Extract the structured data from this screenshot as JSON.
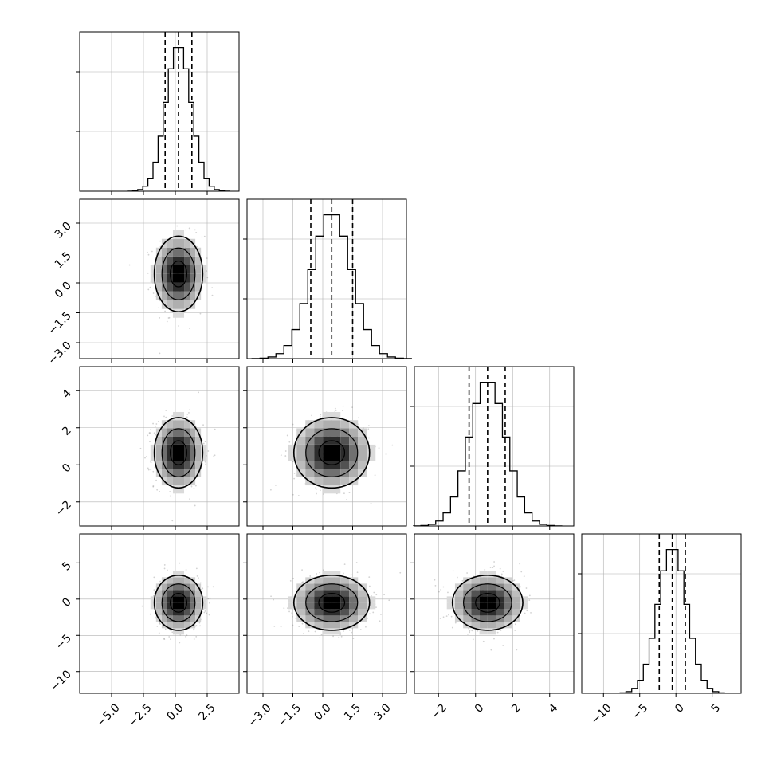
{
  "figure": {
    "type": "corner_plot",
    "grid": true,
    "parameter_count": 4,
    "colors": {
      "hist_line": "#000000",
      "quantile_line": "#000000",
      "scatter": "#7f7f7f",
      "grid": "#b0b0b0",
      "density_max": "#000000"
    }
  },
  "chart_data": [
    {
      "type": "histogram",
      "panel": "diag-0",
      "param": 0,
      "xlim": [
        -7.5,
        5.0
      ],
      "ylim": [
        0,
        1.0
      ],
      "mean": 0.25,
      "sd": 1.0,
      "bins": 20,
      "quantiles": [
        -0.8,
        0.25,
        1.3
      ],
      "grid": true
    },
    {
      "type": "histogram",
      "panel": "diag-1",
      "param": 1,
      "xlim": [
        -3.8,
        4.2
      ],
      "ylim": [
        0,
        1.0
      ],
      "mean": 0.45,
      "sd": 1.0,
      "bins": 20,
      "quantiles": [
        -0.6,
        0.45,
        1.5
      ],
      "grid": true
    },
    {
      "type": "histogram",
      "panel": "diag-2",
      "param": 2,
      "xlim": [
        -3.3,
        5.3
      ],
      "ylim": [
        0,
        1.0
      ],
      "mean": 0.65,
      "sd": 1.0,
      "bins": 20,
      "quantiles": [
        -0.35,
        0.65,
        1.6
      ],
      "grid": true
    },
    {
      "type": "histogram",
      "panel": "diag-3",
      "param": 3,
      "xlim": [
        -13.0,
        9.0
      ],
      "ylim": [
        0,
        1.0
      ],
      "mean": -0.5,
      "sd": 2.0,
      "bins": 20,
      "quantiles": [
        -2.3,
        -0.5,
        1.3
      ],
      "grid": true
    },
    {
      "type": "scatter",
      "panel": "2d-1-0",
      "x_param": 0,
      "y_param": 1,
      "xlim": [
        -7.5,
        5.0
      ],
      "ylim": [
        -3.8,
        4.2
      ],
      "center": [
        0.25,
        0.45
      ],
      "sd": [
        1.0,
        1.0
      ],
      "grid": true
    },
    {
      "type": "scatter",
      "panel": "2d-2-0",
      "x_param": 0,
      "y_param": 2,
      "xlim": [
        -7.5,
        5.0
      ],
      "ylim": [
        -3.3,
        5.3
      ],
      "center": [
        0.25,
        0.65
      ],
      "sd": [
        1.0,
        1.0
      ],
      "grid": true
    },
    {
      "type": "scatter",
      "panel": "2d-2-1",
      "x_param": 1,
      "y_param": 2,
      "xlim": [
        -3.8,
        4.2
      ],
      "ylim": [
        -3.3,
        5.3
      ],
      "center": [
        0.45,
        0.65
      ],
      "sd": [
        1.0,
        1.0
      ],
      "grid": true
    },
    {
      "type": "scatter",
      "panel": "2d-3-0",
      "x_param": 0,
      "y_param": 3,
      "xlim": [
        -7.5,
        5.0
      ],
      "ylim": [
        -13.0,
        9.0
      ],
      "center": [
        0.25,
        -0.5
      ],
      "sd": [
        1.0,
        2.0
      ],
      "grid": true
    },
    {
      "type": "scatter",
      "panel": "2d-3-1",
      "x_param": 1,
      "y_param": 3,
      "xlim": [
        -3.8,
        4.2
      ],
      "ylim": [
        -13.0,
        9.0
      ],
      "center": [
        0.45,
        -0.5
      ],
      "sd": [
        1.0,
        2.0
      ],
      "grid": true
    },
    {
      "type": "scatter",
      "panel": "2d-3-2",
      "x_param": 2,
      "y_param": 3,
      "xlim": [
        -3.3,
        5.3
      ],
      "ylim": [
        -13.0,
        9.0
      ],
      "center": [
        0.65,
        -0.5
      ],
      "sd": [
        1.0,
        2.0
      ],
      "grid": true
    }
  ],
  "axes": {
    "x_ticks": [
      {
        "values": [
          -5.0,
          -2.5,
          0.0,
          2.5
        ],
        "labels": [
          "−5.0",
          "−2.5",
          "0.0",
          "2.5"
        ]
      },
      {
        "values": [
          -3.0,
          -1.5,
          0.0,
          1.5,
          3.0
        ],
        "labels": [
          "−3.0",
          "−1.5",
          "0.0",
          "1.5",
          "3.0"
        ]
      },
      {
        "values": [
          -2,
          0,
          2,
          4
        ],
        "labels": [
          "−2",
          "0",
          "2",
          "4"
        ]
      },
      {
        "values": [
          -10,
          -5,
          0,
          5
        ],
        "labels": [
          "−10",
          "−5",
          "0",
          "5"
        ]
      }
    ],
    "y_ticks": [
      null,
      {
        "values": [
          3.0,
          1.5,
          0.0,
          -1.5,
          -3.0
        ],
        "labels": [
          "3.0",
          "1.5",
          "0.0",
          "−1.5",
          "−3.0"
        ]
      },
      {
        "values": [
          4,
          2,
          0,
          -2
        ],
        "labels": [
          "4",
          "2",
          "0",
          "−2"
        ]
      },
      {
        "values": [
          5,
          0,
          -5,
          -10
        ],
        "labels": [
          "5",
          "0",
          "−5",
          "−10"
        ]
      }
    ]
  }
}
